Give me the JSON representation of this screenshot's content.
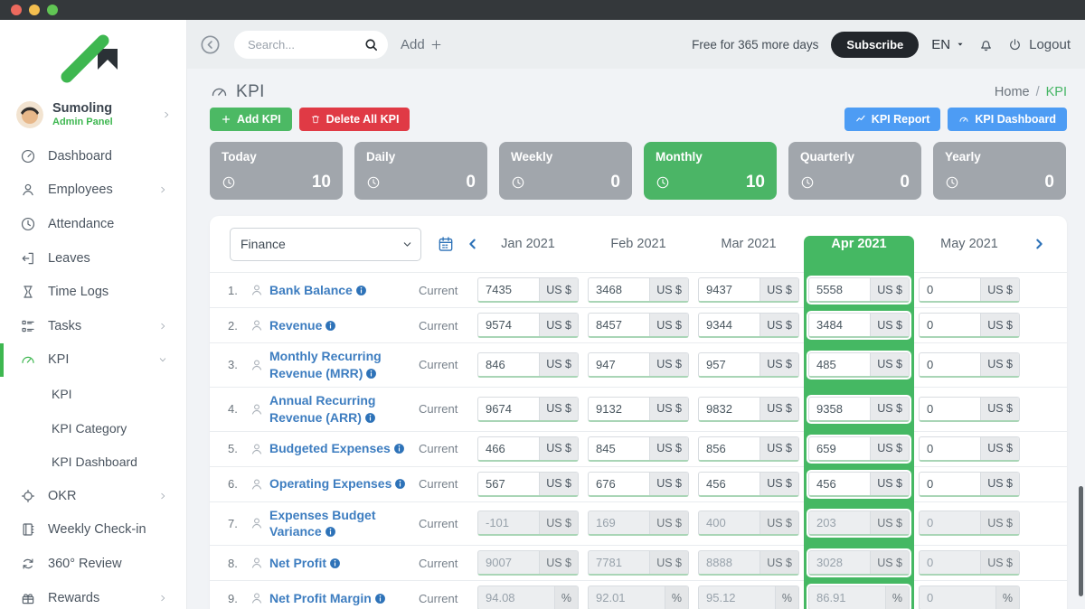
{
  "titlebar": {
    "buttons": [
      "close",
      "minimize",
      "zoom"
    ]
  },
  "sidebar": {
    "company": {
      "name": "Sumoling",
      "subtitle": "Admin Panel"
    },
    "items": [
      {
        "icon": "dashboard-icon",
        "label": "Dashboard"
      },
      {
        "icon": "employees-icon",
        "label": "Employees",
        "chevron": "right"
      },
      {
        "icon": "attendance-icon",
        "label": "Attendance"
      },
      {
        "icon": "leaves-icon",
        "label": "Leaves"
      },
      {
        "icon": "time-logs-icon",
        "label": "Time Logs"
      },
      {
        "icon": "tasks-icon",
        "label": "Tasks",
        "chevron": "right"
      },
      {
        "icon": "kpi-icon",
        "label": "KPI",
        "chevron": "down",
        "active": true,
        "children": [
          "KPI",
          "KPI Category",
          "KPI Dashboard"
        ]
      },
      {
        "icon": "okr-icon",
        "label": "OKR",
        "chevron": "right"
      },
      {
        "icon": "weekly-checkin-icon",
        "label": "Weekly Check-in"
      },
      {
        "icon": "360-review-icon",
        "label": "360° Review"
      },
      {
        "icon": "rewards-icon",
        "label": "Rewards",
        "chevron": "right"
      }
    ]
  },
  "topbar": {
    "search_placeholder": "Search...",
    "add_label": "Add",
    "trial_text": "Free for 365 more days",
    "subscribe_label": "Subscribe",
    "language": "EN",
    "logout_label": "Logout"
  },
  "page": {
    "title": "KPI",
    "breadcrumb": [
      "Home",
      "KPI"
    ],
    "actions": {
      "add_kpi": "Add KPI",
      "delete_all": "Delete All KPI",
      "kpi_report": "KPI Report",
      "kpi_dashboard": "KPI Dashboard"
    }
  },
  "stat_cards": [
    {
      "label": "Today",
      "value": "10",
      "active": false
    },
    {
      "label": "Daily",
      "value": "0",
      "active": false
    },
    {
      "label": "Weekly",
      "value": "0",
      "active": false
    },
    {
      "label": "Monthly",
      "value": "10",
      "active": true
    },
    {
      "label": "Quarterly",
      "value": "0",
      "active": false
    },
    {
      "label": "Yearly",
      "value": "0",
      "active": false
    }
  ],
  "kpi_table": {
    "category_filter": "Finance",
    "months": [
      "Jan 2021",
      "Feb 2021",
      "Mar 2021",
      "Apr 2021",
      "May 2021"
    ],
    "active_month": "Apr 2021",
    "row_label": "Current",
    "rows": [
      {
        "num": "1.",
        "name": "Bank Balance",
        "unit": "US $",
        "disabled": false,
        "values": [
          "7435",
          "3468",
          "9437",
          "5558",
          "0"
        ]
      },
      {
        "num": "2.",
        "name": "Revenue",
        "unit": "US $",
        "disabled": false,
        "values": [
          "9574",
          "8457",
          "9344",
          "3484",
          "0"
        ]
      },
      {
        "num": "3.",
        "name": "Monthly Recurring Revenue (MRR)",
        "unit": "US $",
        "disabled": false,
        "values": [
          "846",
          "947",
          "957",
          "485",
          "0"
        ]
      },
      {
        "num": "4.",
        "name": "Annual Recurring Revenue (ARR)",
        "unit": "US $",
        "disabled": false,
        "values": [
          "9674",
          "9132",
          "9832",
          "9358",
          "0"
        ]
      },
      {
        "num": "5.",
        "name": "Budgeted Expenses",
        "unit": "US $",
        "disabled": false,
        "values": [
          "466",
          "845",
          "856",
          "659",
          "0"
        ]
      },
      {
        "num": "6.",
        "name": "Operating Expenses",
        "unit": "US $",
        "disabled": false,
        "values": [
          "567",
          "676",
          "456",
          "456",
          "0"
        ]
      },
      {
        "num": "7.",
        "name": "Expenses Budget Variance",
        "unit": "US $",
        "disabled": true,
        "values": [
          "-101",
          "169",
          "400",
          "203",
          "0"
        ]
      },
      {
        "num": "8.",
        "name": "Net Profit",
        "unit": "US $",
        "disabled": true,
        "values": [
          "9007",
          "7781",
          "8888",
          "3028",
          "0"
        ]
      },
      {
        "num": "9.",
        "name": "Net Profit Margin",
        "unit": "%",
        "disabled": true,
        "values": [
          "94.08",
          "92.01",
          "95.12",
          "86.91",
          "0"
        ]
      }
    ]
  },
  "colors": {
    "accent_green": "#45b564",
    "danger_red": "#e03a45",
    "primary_blue": "#4d9cf4",
    "link_blue": "#3d7dc0",
    "card_gray": "#a1a6ac",
    "titlebar_dark": "#34383b"
  }
}
